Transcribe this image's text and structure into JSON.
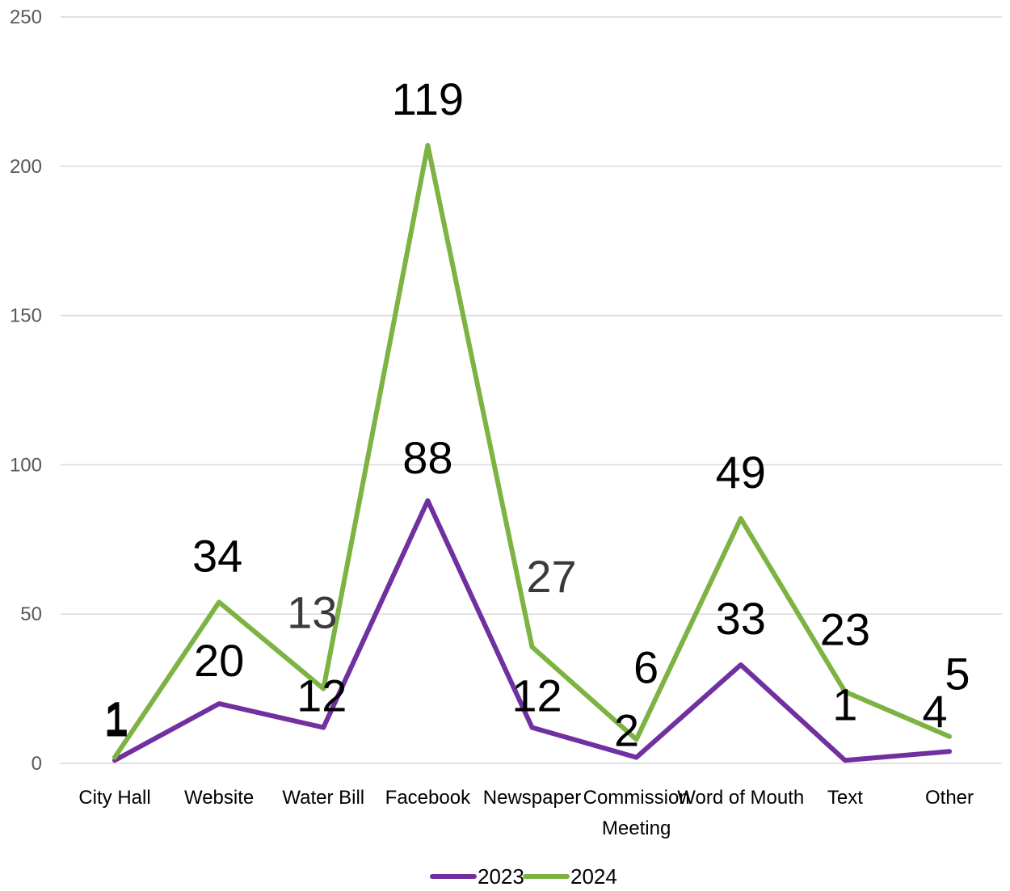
{
  "chart_data": {
    "type": "line",
    "categories": [
      "City Hall",
      "Website",
      "Water Bill",
      "Facebook",
      "Newspaper",
      "Commission Meeting",
      "Word of Mouth",
      "Text",
      "Other"
    ],
    "ylim": [
      0,
      250
    ],
    "yticks": [
      0,
      50,
      100,
      150,
      200,
      250
    ],
    "grid": true,
    "stacked": true,
    "legend_position": "bottom",
    "series": [
      {
        "name": "2023",
        "color": "#7030A0",
        "values": [
          1,
          20,
          12,
          88,
          12,
          2,
          33,
          1,
          4
        ]
      },
      {
        "name": "2024",
        "color": "#7CB342",
        "values": [
          1,
          34,
          13,
          119,
          27,
          6,
          49,
          23,
          5
        ]
      }
    ]
  }
}
